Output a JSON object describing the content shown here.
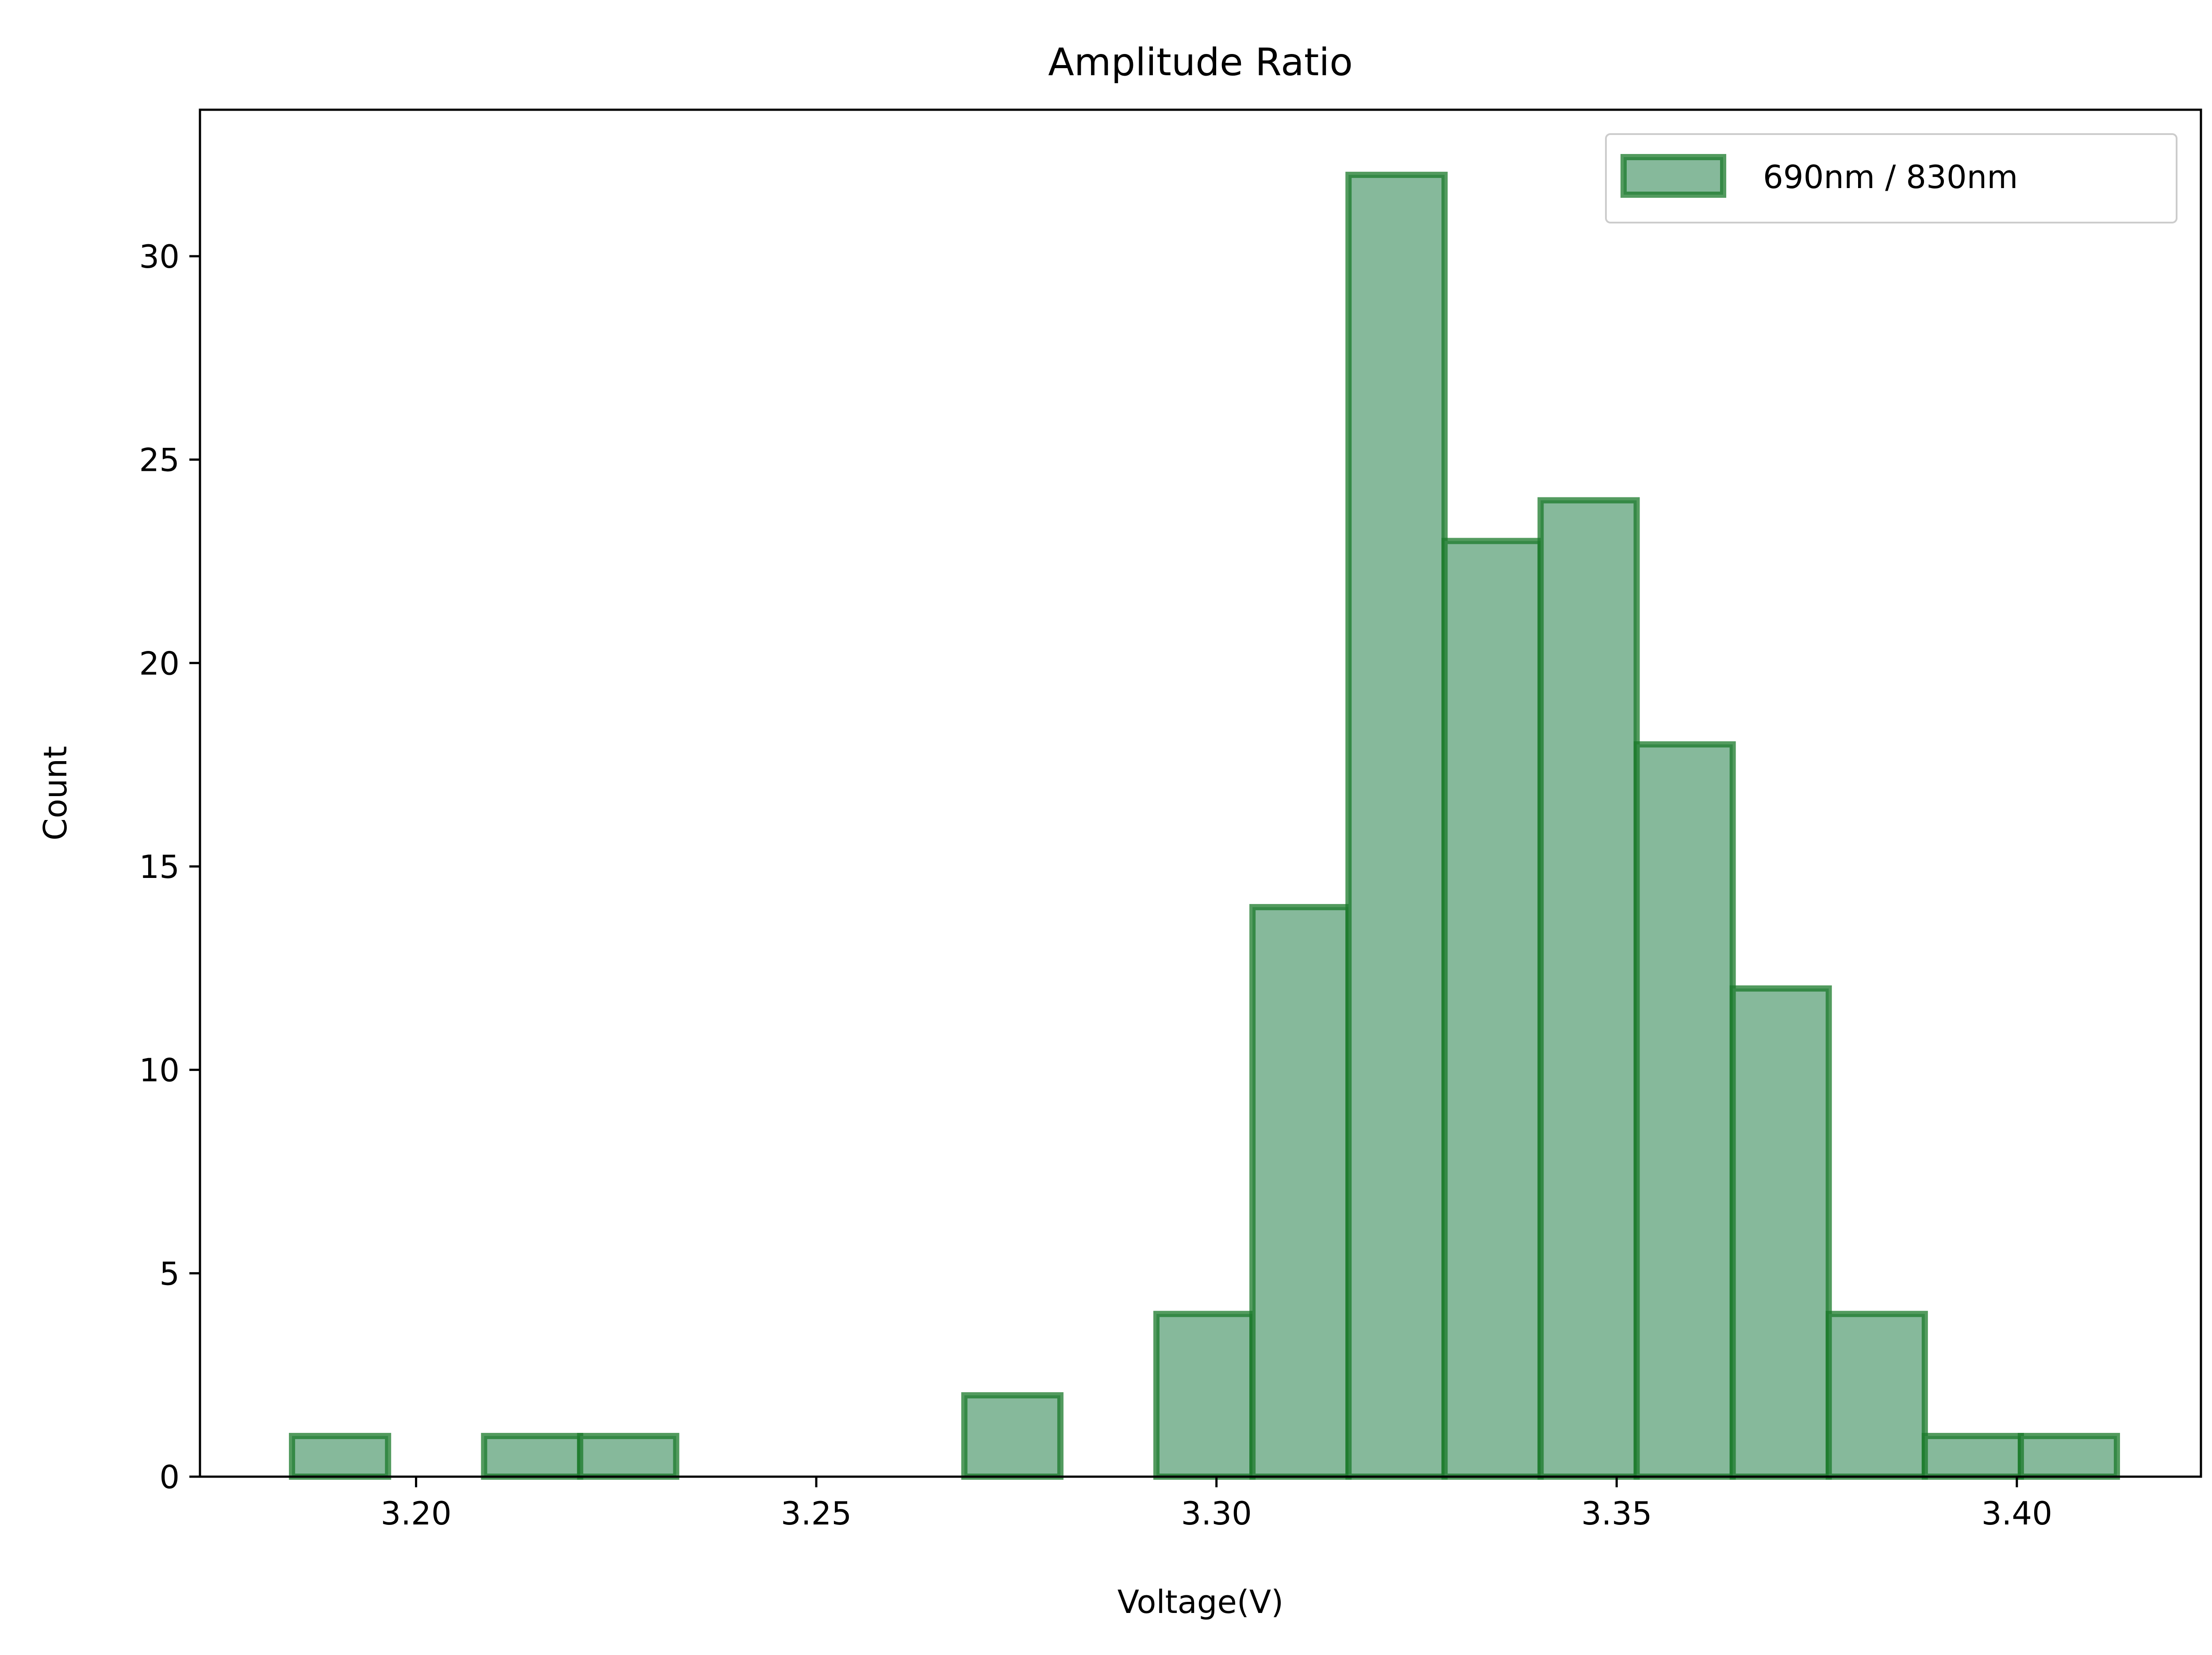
{
  "chart_data": {
    "type": "bar",
    "title": "Amplitude Ratio",
    "xlabel": "Voltage(V)",
    "ylabel": "Count",
    "xlim": [
      3.173,
      3.423
    ],
    "ylim": [
      0,
      33.6
    ],
    "xticks": [
      3.2,
      3.25,
      3.3,
      3.35,
      3.4
    ],
    "xtick_labels": [
      "3.20",
      "3.25",
      "3.30",
      "3.35",
      "3.40"
    ],
    "yticks": [
      0,
      5,
      10,
      15,
      20,
      25,
      30
    ],
    "ytick_labels": [
      "0",
      "5",
      "10",
      "15",
      "20",
      "25",
      "30"
    ],
    "grid": false,
    "legend_position": "top-right",
    "series": [
      {
        "name": "690nm / 830nm",
        "color": "#0a8a3a",
        "fill": "#86b99b",
        "edge": "#1a7a2a",
        "bins": [
          {
            "x0": 3.1845,
            "x1": 3.1965,
            "count": 1
          },
          {
            "x0": 3.1965,
            "x1": 3.2085,
            "count": 0
          },
          {
            "x0": 3.2085,
            "x1": 3.2205,
            "count": 1
          },
          {
            "x0": 3.2205,
            "x1": 3.2325,
            "count": 1
          },
          {
            "x0": 3.2325,
            "x1": 3.2445,
            "count": 0
          },
          {
            "x0": 3.2445,
            "x1": 3.2565,
            "count": 0
          },
          {
            "x0": 3.2565,
            "x1": 3.2685,
            "count": 0
          },
          {
            "x0": 3.2685,
            "x1": 3.2805,
            "count": 2
          },
          {
            "x0": 3.2805,
            "x1": 3.2925,
            "count": 0
          },
          {
            "x0": 3.2925,
            "x1": 3.3045,
            "count": 4
          },
          {
            "x0": 3.3045,
            "x1": 3.3165,
            "count": 14
          },
          {
            "x0": 3.3165,
            "x1": 3.3285,
            "count": 32
          },
          {
            "x0": 3.3285,
            "x1": 3.3405,
            "count": 23
          },
          {
            "x0": 3.3405,
            "x1": 3.3525,
            "count": 24
          },
          {
            "x0": 3.3525,
            "x1": 3.3645,
            "count": 18
          },
          {
            "x0": 3.3645,
            "x1": 3.3765,
            "count": 12
          },
          {
            "x0": 3.3765,
            "x1": 3.3885,
            "count": 4
          },
          {
            "x0": 3.3885,
            "x1": 3.4005,
            "count": 1
          },
          {
            "x0": 3.4005,
            "x1": 3.4125,
            "count": 1
          }
        ]
      }
    ]
  }
}
